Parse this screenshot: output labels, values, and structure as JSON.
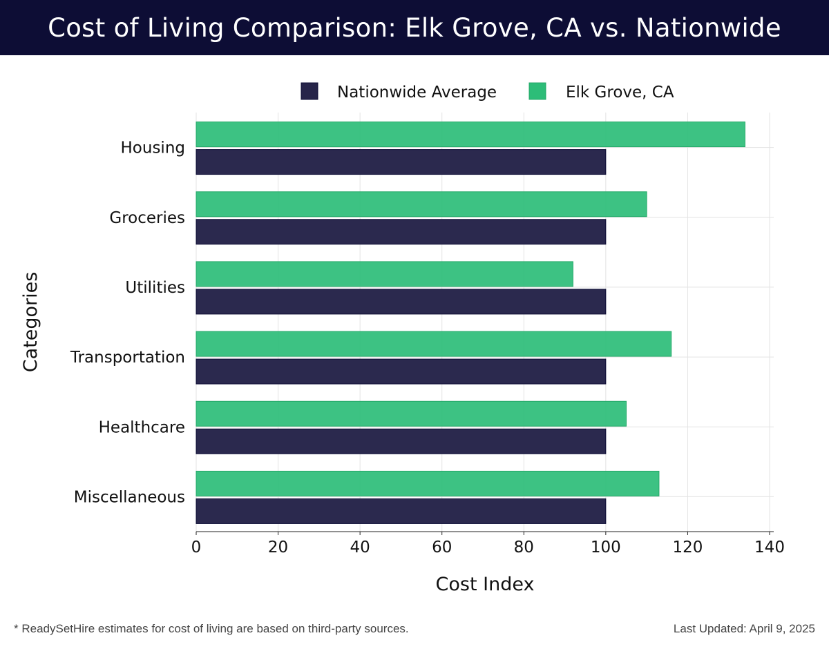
{
  "header": {
    "title": "Cost of Living Comparison: Elk Grove, CA vs. Nationwide"
  },
  "chart_data": {
    "type": "bar",
    "orientation": "horizontal",
    "title": "Cost of Living Comparison: Elk Grove, CA vs. Nationwide",
    "xlabel": "Cost Index",
    "ylabel": "Categories",
    "xlim": [
      0,
      140
    ],
    "xticks": [
      0,
      20,
      40,
      60,
      80,
      100,
      120,
      140
    ],
    "grid": true,
    "legend_position": "top",
    "categories": [
      "Housing",
      "Groceries",
      "Utilities",
      "Transportation",
      "Healthcare",
      "Miscellaneous"
    ],
    "series": [
      {
        "name": "Nationwide Average",
        "color": "#27254a",
        "values": [
          100,
          100,
          100,
          100,
          100,
          100
        ]
      },
      {
        "name": "Elk Grove, CA",
        "color": "#2dbd78",
        "values": [
          134,
          110,
          92,
          116,
          105,
          113
        ]
      }
    ]
  },
  "footer": {
    "note": "* ReadySetHire estimates for cost of living are based on third-party sources.",
    "updated": "Last Updated: April 9, 2025"
  }
}
